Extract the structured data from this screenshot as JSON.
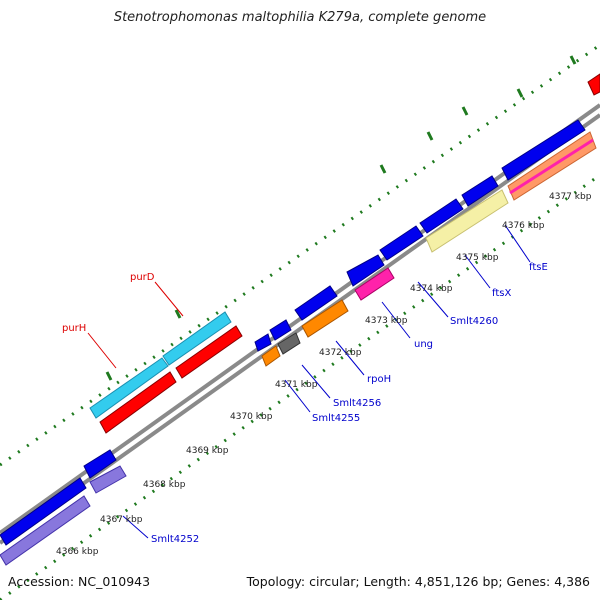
{
  "title": "Stenotrophomonas maltophilia K279a, complete genome",
  "footer": {
    "accession": "Accession: NC_010943",
    "summary": "Topology: circular; Length: 4,851,126 bp; Genes: 4,386"
  },
  "colors": {
    "backbone": "#8a8a8a",
    "tick": "#1f7a1f",
    "forward_cds": "#0000ee",
    "reverse_cds": "#ff0000",
    "label_blue": "#0000cc",
    "label_red": "#dd0000"
  },
  "scale_labels": [
    "4366 kbp",
    "4367 kbp",
    "4368 kbp",
    "4369 kbp",
    "4370 kbp",
    "4371 kbp",
    "4372 kbp",
    "4373 kbp",
    "4374 kbp",
    "4375 kbp",
    "4376 kbp",
    "4377 kbp"
  ],
  "gene_labels": [
    "purH",
    "purD",
    "Smlt4252",
    "Smlt4255",
    "Smlt4256",
    "rpoH",
    "ung",
    "Smlt4260",
    "ftsX",
    "ftsE"
  ]
}
